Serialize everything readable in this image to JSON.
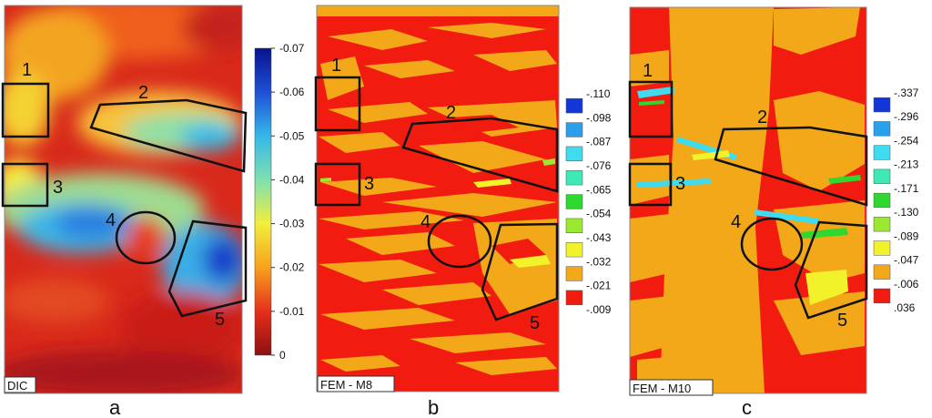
{
  "panels": [
    {
      "id": "a",
      "letter": "a",
      "tag": "DIC",
      "colorbar": {
        "type": "continuous",
        "ticks": [
          "-0.07",
          "-0.06",
          "-0.05",
          "-0.04",
          "-0.03",
          "-0.02",
          "-0.01",
          "0"
        ],
        "colors": [
          "#08138f",
          "#1f4fd6",
          "#35b8e8",
          "#7fe0b0",
          "#f2ee3c",
          "#f7a21d",
          "#e5301b",
          "#8d0f10"
        ]
      },
      "regions": [
        "1",
        "2",
        "3",
        "4",
        "5"
      ]
    },
    {
      "id": "b",
      "letter": "b",
      "tag": "FEM - M8",
      "colorbar": {
        "type": "discrete",
        "ticks": [
          "-.110",
          "-.098",
          "-.087",
          "-.076",
          "-.065",
          "-.054",
          "-.043",
          "-.032",
          "-.021",
          "-.009"
        ],
        "colors": [
          "#1236d8",
          "#2aa0ea",
          "#3fdcf0",
          "#3fe8b4",
          "#2fd82f",
          "#9ae830",
          "#f2f22a",
          "#f2a818",
          "#f21b10"
        ]
      },
      "regions": [
        "1",
        "2",
        "3",
        "4",
        "5"
      ]
    },
    {
      "id": "c",
      "letter": "c",
      "tag": "FEM - M10",
      "colorbar": {
        "type": "discrete",
        "ticks": [
          "-.337",
          "-.296",
          "-.254",
          "-.213",
          "-.171",
          "-.130",
          "-.089",
          "-.047",
          "-.006",
          ".036"
        ],
        "colors": [
          "#1236d8",
          "#2aa0ea",
          "#3fdcf0",
          "#3fe8b4",
          "#2fd82f",
          "#9ae830",
          "#f2f22a",
          "#f2a818",
          "#f21b10"
        ]
      },
      "regions": [
        "1",
        "2",
        "3",
        "4",
        "5"
      ]
    }
  ]
}
